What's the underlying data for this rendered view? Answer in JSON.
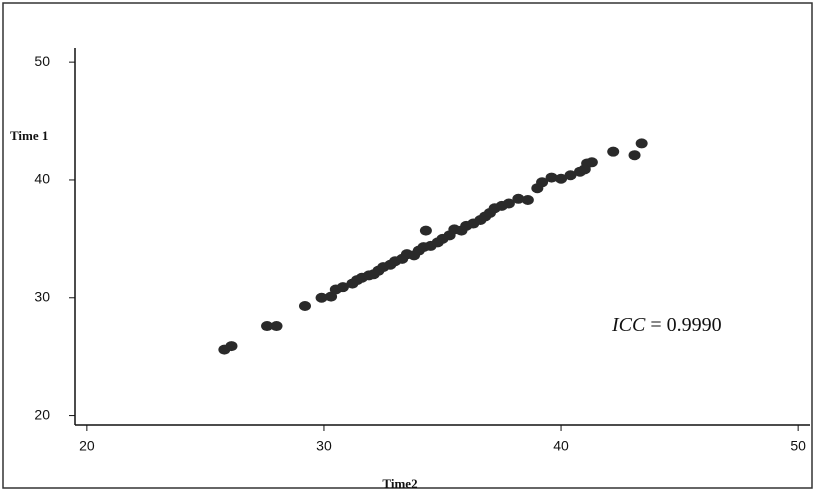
{
  "chart_data": {
    "type": "scatter",
    "x_label": "Time2",
    "y_label": "Time 1",
    "annotation": [
      "ICC",
      "= 0.9990"
    ],
    "color": "#2a2a2a",
    "xlim": [
      19.5,
      50.5
    ],
    "xticks": [
      20,
      30,
      40,
      50
    ],
    "ylim": [
      19.2,
      51.2
    ],
    "yticks": [
      20,
      30,
      40,
      50
    ],
    "x": [
      25.8,
      26.1,
      27.6,
      28.0,
      29.2,
      29.9,
      30.3,
      30.5,
      30.8,
      31.2,
      31.4,
      31.6,
      31.9,
      32.1,
      32.3,
      32.5,
      32.8,
      33.0,
      33.3,
      33.5,
      33.8,
      34.0,
      34.2,
      34.3,
      34.5,
      34.8,
      35.0,
      35.3,
      35.5,
      35.8,
      36.0,
      36.3,
      36.6,
      36.8,
      37.0,
      37.2,
      37.5,
      37.8,
      38.2,
      38.6,
      39.0,
      39.2,
      39.6,
      40.0,
      40.4,
      40.8,
      41.0,
      41.1,
      41.3,
      42.2,
      43.1,
      43.4
    ],
    "values": [
      25.6,
      25.9,
      27.6,
      27.6,
      29.3,
      30.0,
      30.1,
      30.7,
      30.9,
      31.2,
      31.5,
      31.7,
      31.9,
      32.0,
      32.3,
      32.6,
      32.8,
      33.1,
      33.3,
      33.7,
      33.6,
      34.0,
      34.3,
      35.7,
      34.4,
      34.7,
      35.0,
      35.3,
      35.8,
      35.7,
      36.1,
      36.3,
      36.6,
      36.9,
      37.2,
      37.6,
      37.8,
      38.0,
      38.4,
      38.3,
      39.3,
      39.8,
      40.2,
      40.1,
      40.4,
      40.7,
      40.9,
      41.4,
      41.5,
      42.4,
      42.1,
      43.1
    ]
  }
}
